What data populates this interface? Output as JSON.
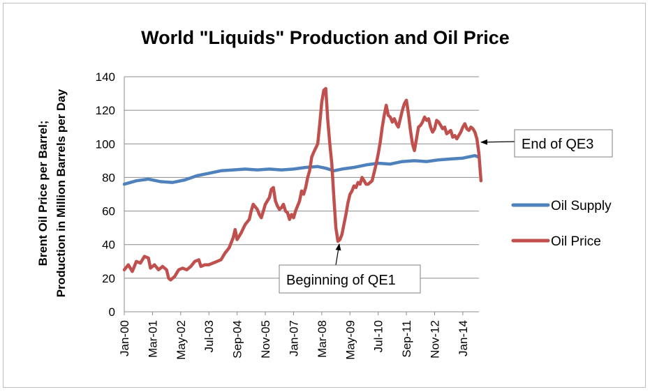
{
  "chart_data": {
    "type": "line",
    "title": "World \"Liquids\" Production and Oil Price",
    "xlabel": "",
    "ylabel_line1": "Brent Oil Price per Barrel;",
    "ylabel_line2": "Production in Million Barrels per Day",
    "ylim": [
      0,
      140
    ],
    "yticks": [
      0,
      20,
      40,
      60,
      80,
      100,
      120,
      140
    ],
    "xticks": [
      "Jan-00",
      "Mar-01",
      "May-02",
      "Jul-03",
      "Sep-04",
      "Nov-05",
      "Jan-07",
      "Mar-08",
      "May-09",
      "Jul-10",
      "Sep-11",
      "Nov-12",
      "Jan-14"
    ],
    "x_months_range": [
      0,
      176
    ],
    "series": [
      {
        "name": "Oil Supply",
        "color": "#4f81bd",
        "points": [
          [
            0,
            76
          ],
          [
            6,
            78
          ],
          [
            12,
            79
          ],
          [
            18,
            77.5
          ],
          [
            24,
            77
          ],
          [
            30,
            78.5
          ],
          [
            36,
            81
          ],
          [
            42,
            82.5
          ],
          [
            48,
            84
          ],
          [
            54,
            84.5
          ],
          [
            60,
            85
          ],
          [
            66,
            84.5
          ],
          [
            72,
            85
          ],
          [
            78,
            84.5
          ],
          [
            84,
            85
          ],
          [
            90,
            86
          ],
          [
            96,
            86.5
          ],
          [
            100,
            85.5
          ],
          [
            104,
            84
          ],
          [
            108,
            85
          ],
          [
            114,
            86
          ],
          [
            120,
            87.5
          ],
          [
            126,
            88.5
          ],
          [
            132,
            88
          ],
          [
            138,
            89.5
          ],
          [
            144,
            90
          ],
          [
            150,
            89.5
          ],
          [
            156,
            90.5
          ],
          [
            162,
            91
          ],
          [
            168,
            91.5
          ],
          [
            174,
            93
          ],
          [
            176,
            92
          ]
        ]
      },
      {
        "name": "Oil Price",
        "color": "#c0504d",
        "points": [
          [
            0,
            25
          ],
          [
            2,
            28
          ],
          [
            4,
            24
          ],
          [
            6,
            30
          ],
          [
            8,
            29
          ],
          [
            10,
            33
          ],
          [
            12,
            32
          ],
          [
            13,
            26
          ],
          [
            15,
            28
          ],
          [
            17,
            25
          ],
          [
            19,
            27
          ],
          [
            21,
            25
          ],
          [
            22,
            20
          ],
          [
            23,
            19
          ],
          [
            25,
            21
          ],
          [
            27,
            25
          ],
          [
            29,
            26
          ],
          [
            31,
            25
          ],
          [
            33,
            27
          ],
          [
            35,
            30
          ],
          [
            37,
            31
          ],
          [
            38,
            27
          ],
          [
            40,
            28
          ],
          [
            42,
            28
          ],
          [
            44,
            29
          ],
          [
            46,
            30
          ],
          [
            48,
            31
          ],
          [
            50,
            35
          ],
          [
            52,
            38
          ],
          [
            54,
            44
          ],
          [
            55,
            49
          ],
          [
            56,
            43
          ],
          [
            58,
            47
          ],
          [
            60,
            52
          ],
          [
            62,
            55
          ],
          [
            63,
            60
          ],
          [
            64,
            64
          ],
          [
            66,
            61
          ],
          [
            67,
            58
          ],
          [
            68,
            56
          ],
          [
            69,
            60
          ],
          [
            70,
            64
          ],
          [
            72,
            68
          ],
          [
            73,
            73
          ],
          [
            74,
            74
          ],
          [
            75,
            66
          ],
          [
            76,
            63
          ],
          [
            77,
            61
          ],
          [
            78,
            62
          ],
          [
            79,
            64
          ],
          [
            80,
            60
          ],
          [
            81,
            59
          ],
          [
            82,
            55
          ],
          [
            83,
            58
          ],
          [
            84,
            56
          ],
          [
            85,
            60
          ],
          [
            87,
            66
          ],
          [
            88,
            72
          ],
          [
            89,
            70
          ],
          [
            90,
            74
          ],
          [
            91,
            80
          ],
          [
            92,
            84
          ],
          [
            93,
            92
          ],
          [
            94,
            95
          ],
          [
            96,
            100
          ],
          [
            97,
            112
          ],
          [
            98,
            125
          ],
          [
            99,
            132
          ],
          [
            100,
            133
          ],
          [
            101,
            114
          ],
          [
            102,
            100
          ],
          [
            103,
            88
          ],
          [
            104,
            68
          ],
          [
            105,
            50
          ],
          [
            106,
            42
          ],
          [
            107,
            43
          ],
          [
            108,
            46
          ],
          [
            109,
            52
          ],
          [
            110,
            58
          ],
          [
            111,
            65
          ],
          [
            112,
            70
          ],
          [
            113,
            72
          ],
          [
            114,
            75
          ],
          [
            115,
            74
          ],
          [
            116,
            77
          ],
          [
            117,
            76
          ],
          [
            118,
            80
          ],
          [
            119,
            78
          ],
          [
            120,
            76
          ],
          [
            121,
            76
          ],
          [
            122,
            77
          ],
          [
            123,
            78
          ],
          [
            124,
            83
          ],
          [
            125,
            88
          ],
          [
            126,
            94
          ],
          [
            127,
            101
          ],
          [
            128,
            110
          ],
          [
            129,
            117
          ],
          [
            130,
            123
          ],
          [
            131,
            117
          ],
          [
            132,
            116
          ],
          [
            133,
            113
          ],
          [
            134,
            115
          ],
          [
            135,
            112
          ],
          [
            136,
            110
          ],
          [
            137,
            115
          ],
          [
            138,
            120
          ],
          [
            139,
            124
          ],
          [
            140,
            126
          ],
          [
            141,
            118
          ],
          [
            142,
            108
          ],
          [
            143,
            100
          ],
          [
            144,
            96
          ],
          [
            145,
            103
          ],
          [
            146,
            110
          ],
          [
            147,
            111
          ],
          [
            148,
            113
          ],
          [
            149,
            116
          ],
          [
            150,
            114
          ],
          [
            151,
            115
          ],
          [
            152,
            110
          ],
          [
            153,
            107
          ],
          [
            154,
            109
          ],
          [
            155,
            114
          ],
          [
            156,
            113
          ],
          [
            157,
            111
          ],
          [
            158,
            109
          ],
          [
            159,
            110
          ],
          [
            160,
            106
          ],
          [
            161,
            107
          ],
          [
            162,
            108
          ],
          [
            163,
            104
          ],
          [
            164,
            105
          ],
          [
            165,
            103
          ],
          [
            166,
            105
          ],
          [
            167,
            107
          ],
          [
            168,
            110
          ],
          [
            169,
            112
          ],
          [
            170,
            109
          ],
          [
            171,
            108
          ],
          [
            172,
            110
          ],
          [
            173,
            109
          ],
          [
            174,
            107
          ],
          [
            175,
            103
          ],
          [
            176,
            94
          ],
          [
            177,
            78
          ]
        ]
      }
    ],
    "annotations": [
      {
        "text": "Beginning of QE1",
        "target": [
          106,
          42
        ]
      },
      {
        "text": "End of QE3",
        "target": [
          176,
          101
        ]
      }
    ]
  }
}
